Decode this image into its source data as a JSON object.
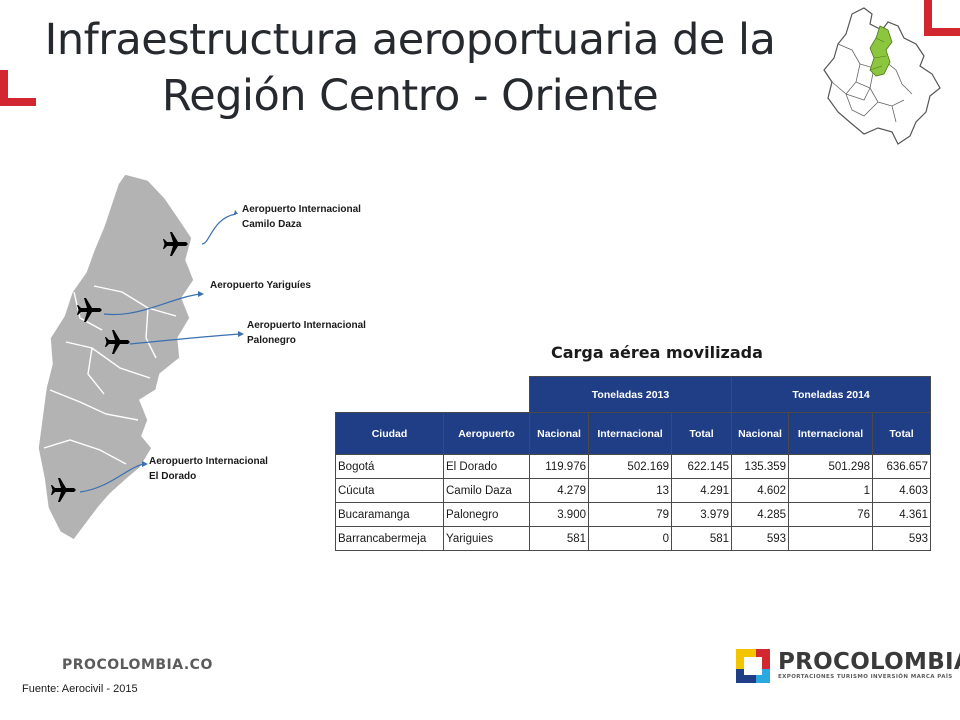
{
  "slide": {
    "title_line1": "Infraestructura aeroportuaria de la",
    "title_line2": "Región Centro - Oriente"
  },
  "colors": {
    "accent_red": "#d22630",
    "table_header_blue": "#1f3e86",
    "region_gray": "#b3b3b3",
    "region_green": "#8cc63f",
    "arrow_blue": "#3a6fb0"
  },
  "map": {
    "airports": [
      {
        "line1": "Aeropuerto  Internacional",
        "line2": "Camilo Daza",
        "icon": "airplane-icon"
      },
      {
        "line1": "Aeropuerto  Yariguíes",
        "line2": "",
        "icon": "airplane-icon"
      },
      {
        "line1": "Aeropuerto  Internacional",
        "line2": "Palonegro",
        "icon": "airplane-icon"
      },
      {
        "line1": "Aeropuerto  Internacional",
        "line2": "El Dorado",
        "icon": "airplane-icon"
      }
    ]
  },
  "table": {
    "heading": "Carga aérea movilizada",
    "group_headers": [
      "Toneladas 2013",
      "Toneladas 2014"
    ],
    "columns": [
      "Ciudad",
      "Aeropuerto",
      "Nacional",
      "Internacional",
      "Total",
      "Nacional",
      "Internacional",
      "Total"
    ],
    "rows": [
      [
        "Bogotá",
        "El Dorado",
        "119.976",
        "502.169",
        "622.145",
        "135.359",
        "501.298",
        "636.657"
      ],
      [
        "Cúcuta",
        "Camilo Daza",
        "4.279",
        "13",
        "4.291",
        "4.602",
        "1",
        "4.603"
      ],
      [
        "Bucaramanga",
        "Palonegro",
        "3.900",
        "79",
        "3.979",
        "4.285",
        "76",
        "4.361"
      ],
      [
        "Barrancabermeja",
        "Yariguies",
        "581",
        "0",
        "581",
        "593",
        "",
        "593"
      ]
    ]
  },
  "footer": {
    "brand_left": "PROCOLOMBIA.CO",
    "source": "Fuente: Aerocivil - 2015",
    "brand_name": "PROCOLOMBIA",
    "brand_tagline": "EXPORTACIONES TURISMO INVERSIÓN MARCA PAÍS"
  }
}
